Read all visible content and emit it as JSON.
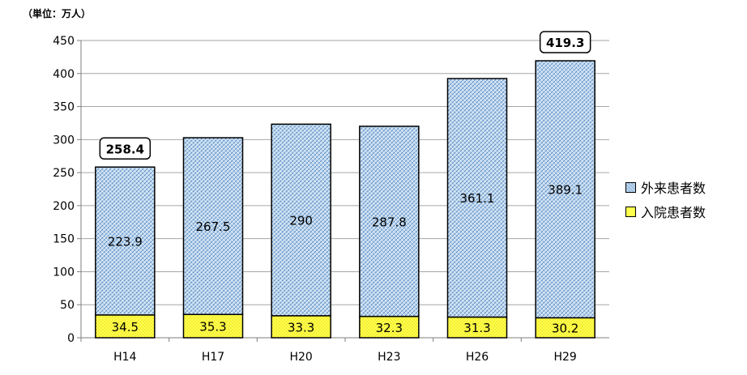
{
  "unit_label": "（単位：万人）",
  "chart_data": {
    "type": "bar",
    "stacked": true,
    "title": "",
    "xlabel": "",
    "ylabel": "（単位：万人）",
    "categories": [
      "H14",
      "H17",
      "H20",
      "H23",
      "H26",
      "H29"
    ],
    "series": [
      {
        "name": "入院患者数",
        "values": [
          34.5,
          35.3,
          33.3,
          32.3,
          31.3,
          30.2
        ],
        "color": "#ffff66",
        "pattern": "dots"
      },
      {
        "name": "外来患者数",
        "values": [
          223.9,
          267.5,
          290,
          287.8,
          361.1,
          389.1
        ],
        "color": "#b8d4f0",
        "pattern": "crosshatch"
      }
    ],
    "total_labels": [
      {
        "category": "H14",
        "text": "258.4"
      },
      {
        "category": "H29",
        "text": "419.3"
      }
    ],
    "ylim": [
      0,
      450
    ],
    "yticks": [
      0,
      50,
      100,
      150,
      200,
      250,
      300,
      350,
      400,
      450
    ],
    "grid": true,
    "legend": [
      "外来患者数",
      "入院患者数"
    ],
    "legend_position": "right"
  }
}
